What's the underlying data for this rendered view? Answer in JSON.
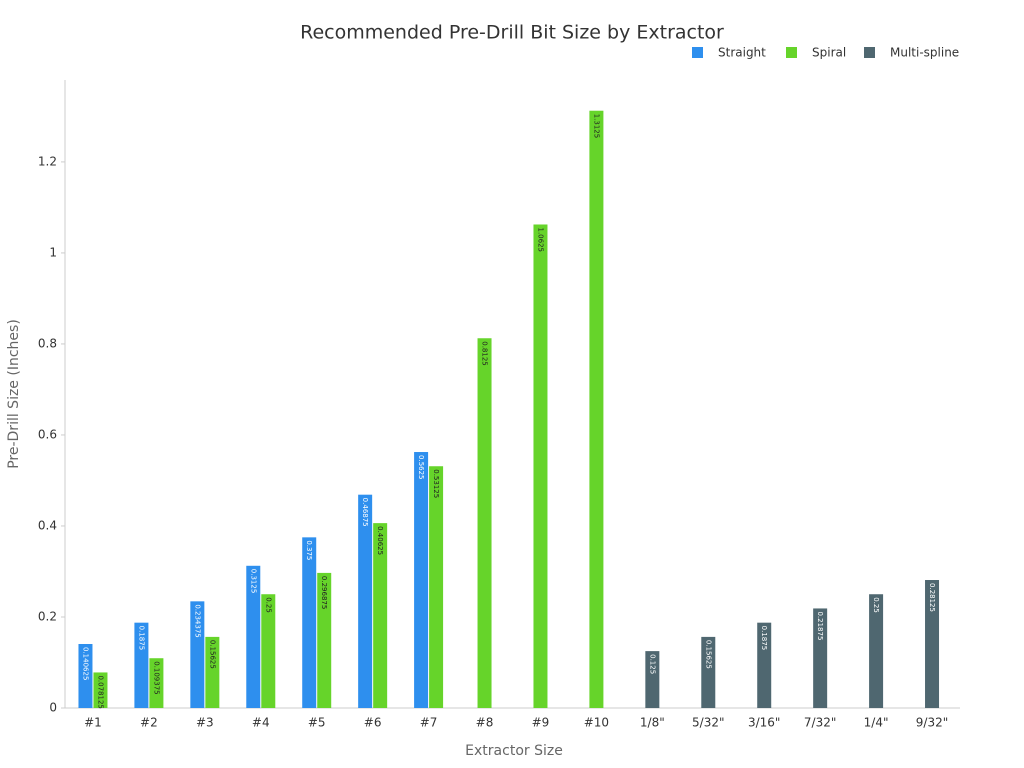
{
  "chart_data": {
    "type": "bar",
    "title": "Recommended Pre-Drill Bit Size by Extractor",
    "x_label": "Extractor Size",
    "y_label": "Pre-Drill Size (Inches)",
    "categories": [
      "#1",
      "#2",
      "#3",
      "#4",
      "#5",
      "#6",
      "#7",
      "#8",
      "#9",
      "#10",
      "1/8\"",
      "5/32\"",
      "3/16\"",
      "7/32\"",
      "1/4\"",
      "9/32\""
    ],
    "series": [
      {
        "name": "Straight",
        "color": "#2e8fee",
        "values": [
          0.140625,
          0.1875,
          0.234375,
          0.3125,
          0.375,
          0.46875,
          0.5625,
          null,
          null,
          null,
          null,
          null,
          null,
          null,
          null,
          null
        ]
      },
      {
        "name": "Spiral",
        "color": "#66d42a",
        "values": [
          0.078125,
          0.109375,
          0.15625,
          0.25,
          0.296875,
          0.40625,
          0.53125,
          0.8125,
          1.0625,
          1.3125,
          null,
          null,
          null,
          null,
          null,
          null
        ]
      },
      {
        "name": "Multi-spline",
        "color": "#4f6770",
        "values": [
          null,
          null,
          null,
          null,
          null,
          null,
          null,
          null,
          null,
          null,
          0.125,
          0.15625,
          0.1875,
          0.21875,
          0.25,
          0.28125
        ]
      }
    ],
    "ylim": [
      0,
      1.38
    ],
    "yticks": [
      0,
      0.2,
      0.4,
      0.6,
      0.8,
      1,
      1.2
    ],
    "grid": false,
    "legend": "top-right"
  }
}
